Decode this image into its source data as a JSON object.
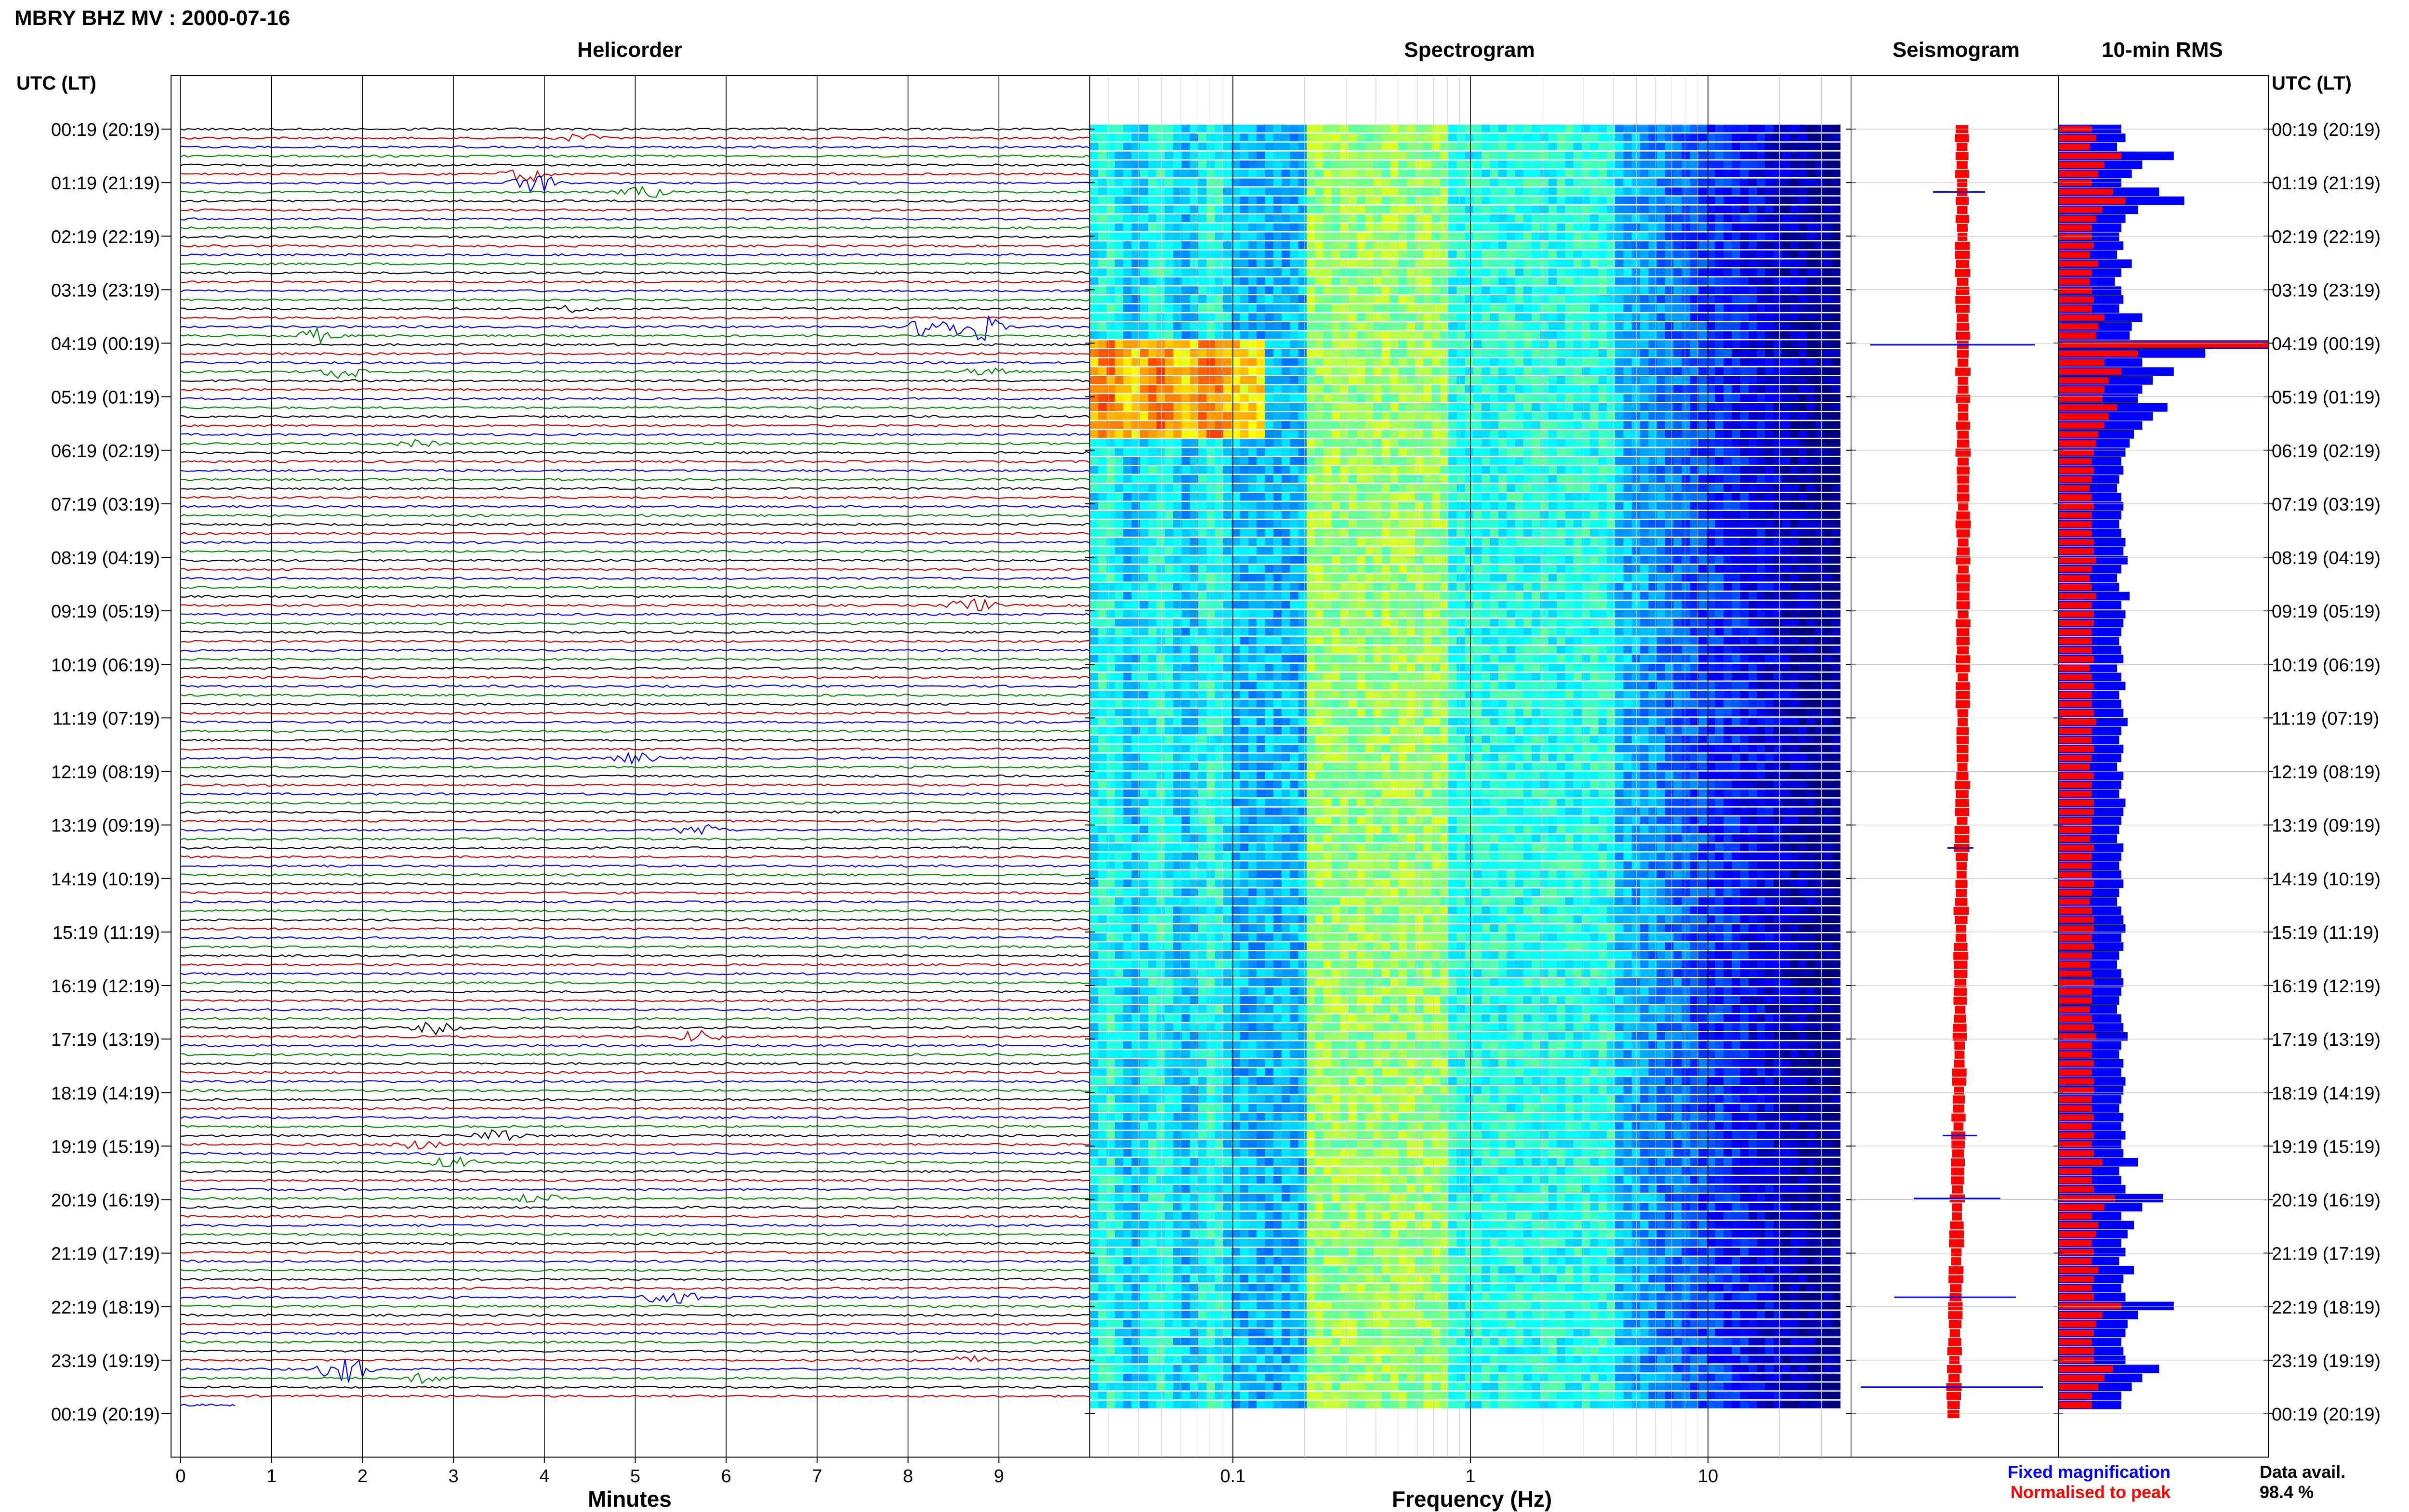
{
  "title": "MBRY BHZ MV : 2000-07-16",
  "panels": {
    "helicorder": "Helicorder",
    "spectrogram": "Spectrogram",
    "seismogram": "Seismogram",
    "rms": "10-min RMS"
  },
  "axis_time_label": "UTC (LT)",
  "time_labels": [
    "00:19 (20:19)",
    "01:19 (21:19)",
    "02:19 (22:19)",
    "03:19 (23:19)",
    "04:19 (00:19)",
    "05:19 (01:19)",
    "06:19 (02:19)",
    "07:19 (03:19)",
    "08:19 (04:19)",
    "09:19 (05:19)",
    "10:19 (06:19)",
    "11:19 (07:19)",
    "12:19 (08:19)",
    "13:19 (09:19)",
    "14:19 (10:19)",
    "15:19 (11:19)",
    "16:19 (12:19)",
    "17:19 (13:19)",
    "18:19 (14:19)",
    "19:19 (15:19)",
    "20:19 (16:19)",
    "21:19 (17:19)",
    "22:19 (18:19)",
    "23:19 (19:19)",
    "00:19 (20:19)"
  ],
  "legend": {
    "fixed": "Fixed magnification",
    "normalised": "Normalised to peak",
    "fixed_color": "#0000ff",
    "normalised_color": "#ff0000"
  },
  "data_avail": {
    "label": "Data avail.",
    "value": "98.4 %"
  },
  "chart_data": [
    {
      "type": "line",
      "name": "helicorder",
      "title": "Helicorder",
      "xlabel": "Minutes",
      "xlim": [
        0,
        10
      ],
      "x_ticks": [
        "0",
        "1",
        "2",
        "3",
        "4",
        "5",
        "6",
        "7",
        "8",
        "9"
      ],
      "rows": 143,
      "trace_colors": [
        "#000000",
        "#cc0000",
        "#0000ff",
        "#008800"
      ],
      "events": [
        {
          "row": 1,
          "minute": 4.4,
          "amp": 1.2
        },
        {
          "row": 5,
          "minute": 3.8,
          "amp": 2.5
        },
        {
          "row": 6,
          "minute": 3.9,
          "amp": 3.2
        },
        {
          "row": 7,
          "minute": 5.1,
          "amp": 2.0
        },
        {
          "row": 20,
          "minute": 4.3,
          "amp": 1.0
        },
        {
          "row": 22,
          "minute": 8.3,
          "amp": 5.0
        },
        {
          "row": 22,
          "minute": 8.8,
          "amp": 4.5
        },
        {
          "row": 23,
          "minute": 1.5,
          "amp": 2.0
        },
        {
          "row": 27,
          "minute": 1.8,
          "amp": 2.4
        },
        {
          "row": 27,
          "minute": 8.9,
          "amp": 1.8
        },
        {
          "row": 35,
          "minute": 2.6,
          "amp": 1.0
        },
        {
          "row": 53,
          "minute": 8.7,
          "amp": 2.4
        },
        {
          "row": 70,
          "minute": 5.0,
          "amp": 1.6
        },
        {
          "row": 78,
          "minute": 5.7,
          "amp": 2.0
        },
        {
          "row": 100,
          "minute": 2.8,
          "amp": 1.8
        },
        {
          "row": 101,
          "minute": 5.7,
          "amp": 2.0
        },
        {
          "row": 112,
          "minute": 3.5,
          "amp": 2.4
        },
        {
          "row": 113,
          "minute": 2.6,
          "amp": 2.0
        },
        {
          "row": 115,
          "minute": 3.0,
          "amp": 1.8
        },
        {
          "row": 119,
          "minute": 3.9,
          "amp": 1.6
        },
        {
          "row": 130,
          "minute": 5.4,
          "amp": 3.4
        },
        {
          "row": 137,
          "minute": 8.6,
          "amp": 1.8
        },
        {
          "row": 138,
          "minute": 1.8,
          "amp": 5.0
        },
        {
          "row": 139,
          "minute": 2.7,
          "amp": 1.6
        }
      ]
    },
    {
      "type": "heatmap",
      "name": "spectrogram",
      "title": "Spectrogram",
      "xlabel": "Frequency (Hz)",
      "x_scale": "log",
      "xlim": [
        0.025,
        40
      ],
      "x_ticks": [
        0.1,
        1,
        10
      ],
      "x_tick_labels": [
        "0.1",
        "1",
        "10"
      ],
      "rows": 143
    },
    {
      "type": "line",
      "name": "seismogram",
      "title": "Seismogram",
      "series": [
        {
          "name": "Fixed magnification",
          "color": "#0000ff"
        },
        {
          "name": "Normalised to peak",
          "color": "#ff0000"
        }
      ]
    },
    {
      "type": "bar",
      "name": "rms",
      "title": "10-min RMS",
      "bars_per_row": 143,
      "series": [
        {
          "name": "Fixed magnification",
          "color": "#0000ff",
          "values": [
            0.3,
            0.32,
            0.28,
            0.55,
            0.4,
            0.35,
            0.3,
            0.48,
            0.6,
            0.38,
            0.32,
            0.3,
            0.29,
            0.31,
            0.28,
            0.35,
            0.3,
            0.27,
            0.3,
            0.31,
            0.29,
            0.4,
            0.35,
            0.34,
            1.0,
            0.7,
            0.4,
            0.55,
            0.45,
            0.4,
            0.38,
            0.52,
            0.45,
            0.4,
            0.36,
            0.34,
            0.32,
            0.3,
            0.31,
            0.29,
            0.28,
            0.3,
            0.31,
            0.3,
            0.29,
            0.3,
            0.32,
            0.31,
            0.33,
            0.3,
            0.28,
            0.29,
            0.34,
            0.3,
            0.32,
            0.31,
            0.3,
            0.29,
            0.3,
            0.31,
            0.28,
            0.3,
            0.32,
            0.29,
            0.3,
            0.31,
            0.33,
            0.3,
            0.29,
            0.31,
            0.3,
            0.28,
            0.31,
            0.3,
            0.29,
            0.32,
            0.31,
            0.3,
            0.29,
            0.28,
            0.31,
            0.3,
            0.29,
            0.3,
            0.31,
            0.29,
            0.28,
            0.3,
            0.31,
            0.32,
            0.3,
            0.31,
            0.29,
            0.28,
            0.3,
            0.31,
            0.3,
            0.29,
            0.28,
            0.3,
            0.31,
            0.33,
            0.3,
            0.29,
            0.31,
            0.3,
            0.32,
            0.31,
            0.3,
            0.29,
            0.31,
            0.3,
            0.32,
            0.3,
            0.31,
            0.38,
            0.29,
            0.3,
            0.32,
            0.5,
            0.4,
            0.3,
            0.36,
            0.33,
            0.3,
            0.32,
            0.29,
            0.36,
            0.31,
            0.3,
            0.32,
            0.55,
            0.38,
            0.33,
            0.32,
            0.3,
            0.31,
            0.32,
            0.48,
            0.4,
            0.35,
            0.3,
            0.3
          ]
        },
        {
          "name": "Normalised to peak",
          "color": "#ff0000",
          "values": [
            0.16,
            0.18,
            0.15,
            0.3,
            0.22,
            0.19,
            0.16,
            0.26,
            0.32,
            0.21,
            0.18,
            0.16,
            0.16,
            0.17,
            0.15,
            0.19,
            0.16,
            0.15,
            0.16,
            0.17,
            0.16,
            0.22,
            0.19,
            0.18,
            1.0,
            0.38,
            0.22,
            0.3,
            0.24,
            0.22,
            0.21,
            0.28,
            0.24,
            0.22,
            0.19,
            0.18,
            0.17,
            0.16,
            0.17,
            0.16,
            0.15,
            0.16,
            0.17,
            0.16,
            0.16,
            0.16,
            0.17,
            0.17,
            0.18,
            0.16,
            0.15,
            0.16,
            0.18,
            0.16,
            0.17,
            0.17,
            0.16,
            0.16,
            0.16,
            0.17,
            0.15,
            0.16,
            0.17,
            0.16,
            0.16,
            0.17,
            0.18,
            0.16,
            0.16,
            0.17,
            0.16,
            0.15,
            0.17,
            0.16,
            0.16,
            0.17,
            0.17,
            0.16,
            0.16,
            0.15,
            0.17,
            0.16,
            0.16,
            0.16,
            0.17,
            0.16,
            0.15,
            0.16,
            0.17,
            0.17,
            0.16,
            0.17,
            0.16,
            0.15,
            0.16,
            0.17,
            0.16,
            0.16,
            0.15,
            0.16,
            0.17,
            0.18,
            0.16,
            0.16,
            0.17,
            0.16,
            0.17,
            0.17,
            0.16,
            0.16,
            0.17,
            0.16,
            0.17,
            0.16,
            0.17,
            0.21,
            0.16,
            0.16,
            0.17,
            0.27,
            0.22,
            0.16,
            0.19,
            0.18,
            0.16,
            0.17,
            0.16,
            0.19,
            0.17,
            0.16,
            0.17,
            0.3,
            0.21,
            0.18,
            0.17,
            0.16,
            0.17,
            0.17,
            0.26,
            0.22,
            0.19,
            0.16,
            0.16
          ]
        }
      ]
    }
  ]
}
